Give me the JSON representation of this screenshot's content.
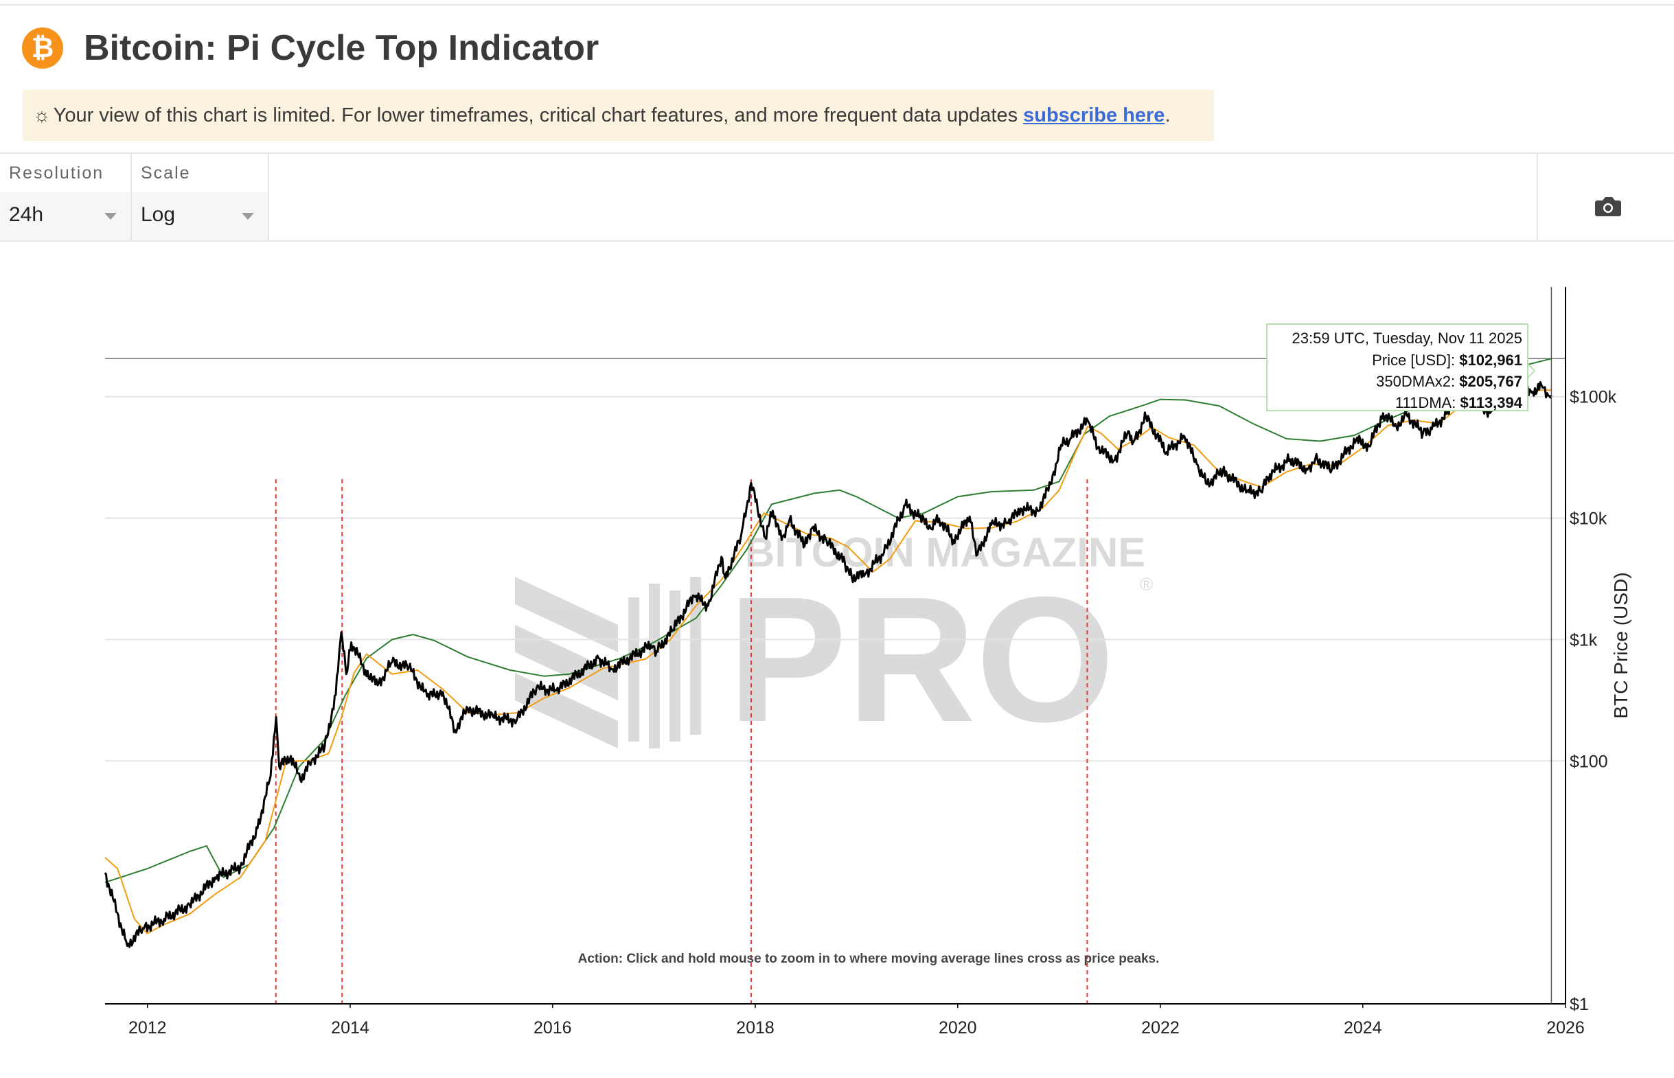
{
  "header": {
    "logo_glyph": "₿",
    "title": "Bitcoin: Pi Cycle Top Indicator"
  },
  "banner": {
    "icon": "sun-icon",
    "text": "Your view of this chart is limited. For lower timeframes, critical chart features, and more frequent data updates ",
    "link_text": "subscribe here",
    "suffix": "."
  },
  "controls": {
    "resolution": {
      "label": "Resolution",
      "value": "24h"
    },
    "scale": {
      "label": "Scale",
      "value": "Log"
    },
    "camera_icon": "camera-icon"
  },
  "watermark": {
    "line1": "BITCOIN MAGAZINE",
    "line2": "PRO",
    "mark": "®"
  },
  "chart_data": {
    "type": "line",
    "scale": "log",
    "ylabel": "BTC Price (USD)",
    "xlabel": "",
    "x_ticks": [
      "2012",
      "2014",
      "2016",
      "2018",
      "2020",
      "2022",
      "2024",
      "2026"
    ],
    "y_ticks": [
      {
        "value": 1,
        "label": "$1"
      },
      {
        "value": 100,
        "label": "$100"
      },
      {
        "value": 1000,
        "label": "$1k"
      },
      {
        "value": 10000,
        "label": "$10k"
      },
      {
        "value": 100000,
        "label": "$100k"
      }
    ],
    "xlim": [
      "2011-08-01",
      "2026-01-01"
    ],
    "ylim": [
      1,
      800000
    ],
    "colors": {
      "price": "#000000",
      "dma350x2": "#2e7d32",
      "dma111": "#f39c12",
      "cross": "#e53935"
    },
    "series": [
      {
        "name": "Price [USD]",
        "key": "price",
        "points": [
          [
            "2011-08-01",
            12
          ],
          [
            "2011-10-20",
            3
          ],
          [
            "2011-12-15",
            4.2
          ],
          [
            "2012-03-01",
            5
          ],
          [
            "2012-06-01",
            6.5
          ],
          [
            "2012-09-01",
            11
          ],
          [
            "2012-12-01",
            13.5
          ],
          [
            "2013-02-01",
            28
          ],
          [
            "2013-03-20",
            75
          ],
          [
            "2013-04-09",
            230
          ],
          [
            "2013-04-20",
            90
          ],
          [
            "2013-06-01",
            110
          ],
          [
            "2013-07-05",
            70
          ],
          [
            "2013-08-15",
            100
          ],
          [
            "2013-10-01",
            130
          ],
          [
            "2013-11-10",
            350
          ],
          [
            "2013-11-30",
            1150
          ],
          [
            "2013-12-18",
            520
          ],
          [
            "2014-01-05",
            950
          ],
          [
            "2014-02-25",
            560
          ],
          [
            "2014-04-10",
            420
          ],
          [
            "2014-06-01",
            650
          ],
          [
            "2014-08-01",
            590
          ],
          [
            "2014-10-05",
            340
          ],
          [
            "2014-12-01",
            370
          ],
          [
            "2015-01-14",
            180
          ],
          [
            "2015-03-01",
            270
          ],
          [
            "2015-06-01",
            230
          ],
          [
            "2015-08-24",
            215
          ],
          [
            "2015-11-04",
            400
          ],
          [
            "2016-01-15",
            380
          ],
          [
            "2016-06-15",
            700
          ],
          [
            "2016-08-01",
            570
          ],
          [
            "2016-12-20",
            900
          ],
          [
            "2017-01-10",
            800
          ],
          [
            "2017-03-10",
            1200
          ],
          [
            "2017-05-25",
            2300
          ],
          [
            "2017-07-15",
            1900
          ],
          [
            "2017-09-01",
            4800
          ],
          [
            "2017-09-15",
            3200
          ],
          [
            "2017-11-10",
            7000
          ],
          [
            "2017-12-17",
            19500
          ],
          [
            "2018-02-06",
            6900
          ],
          [
            "2018-03-05",
            11500
          ],
          [
            "2018-04-06",
            6600
          ],
          [
            "2018-05-05",
            9800
          ],
          [
            "2018-06-28",
            5900
          ],
          [
            "2018-07-25",
            8300
          ],
          [
            "2018-09-15",
            6500
          ],
          [
            "2018-11-20",
            4300
          ],
          [
            "2018-12-15",
            3250
          ],
          [
            "2019-02-01",
            3450
          ],
          [
            "2019-04-10",
            5200
          ],
          [
            "2019-06-26",
            12800
          ],
          [
            "2019-08-15",
            10200
          ],
          [
            "2019-09-25",
            8300
          ],
          [
            "2019-10-26",
            9900
          ],
          [
            "2019-12-17",
            6600
          ],
          [
            "2020-02-13",
            10300
          ],
          [
            "2020-03-12",
            5000
          ],
          [
            "2020-05-01",
            8800
          ],
          [
            "2020-07-01",
            9100
          ],
          [
            "2020-08-15",
            12000
          ],
          [
            "2020-10-15",
            11500
          ],
          [
            "2020-12-01",
            19000
          ],
          [
            "2021-01-08",
            40000
          ],
          [
            "2021-02-10",
            45000
          ],
          [
            "2021-04-14",
            63500
          ],
          [
            "2021-05-20",
            38000
          ],
          [
            "2021-07-20",
            30000
          ],
          [
            "2021-09-07",
            52000
          ],
          [
            "2021-09-25",
            42000
          ],
          [
            "2021-11-10",
            68000
          ],
          [
            "2022-01-23",
            35000
          ],
          [
            "2022-03-29",
            47000
          ],
          [
            "2022-05-12",
            28000
          ],
          [
            "2022-06-18",
            19000
          ],
          [
            "2022-08-14",
            24500
          ],
          [
            "2022-11-10",
            16500
          ],
          [
            "2022-12-30",
            16500
          ],
          [
            "2023-01-31",
            23000
          ],
          [
            "2023-04-14",
            30500
          ],
          [
            "2023-06-15",
            25000
          ],
          [
            "2023-07-14",
            31000
          ],
          [
            "2023-09-11",
            25000
          ],
          [
            "2023-12-08",
            44000
          ],
          [
            "2024-01-23",
            39000
          ],
          [
            "2024-03-14",
            73000
          ],
          [
            "2024-05-01",
            57000
          ],
          [
            "2024-06-07",
            71000
          ],
          [
            "2024-08-05",
            50000
          ],
          [
            "2024-09-06",
            54000
          ],
          [
            "2024-10-29",
            72000
          ],
          [
            "2024-12-17",
            106000
          ],
          [
            "2025-01-20",
            108000
          ],
          [
            "2025-03-10",
            78000
          ],
          [
            "2025-04-08",
            76000
          ],
          [
            "2025-05-22",
            111000
          ],
          [
            "2025-06-22",
            100000
          ],
          [
            "2025-07-14",
            122000
          ],
          [
            "2025-08-14",
            123000
          ],
          [
            "2025-09-01",
            108000
          ],
          [
            "2025-10-06",
            125000
          ],
          [
            "2025-11-04",
            101000
          ],
          [
            "2025-11-11",
            102961
          ]
        ]
      },
      {
        "name": "350DMAx2",
        "key": "dma350x2",
        "points": [
          [
            "2011-08-01",
            10
          ],
          [
            "2012-01-01",
            13
          ],
          [
            "2012-06-01",
            18
          ],
          [
            "2012-08-01",
            20
          ],
          [
            "2012-10-01",
            11
          ],
          [
            "2013-01-01",
            14
          ],
          [
            "2013-04-01",
            28
          ],
          [
            "2013-07-01",
            90
          ],
          [
            "2013-10-01",
            150
          ],
          [
            "2013-12-15",
            350
          ],
          [
            "2014-03-01",
            700
          ],
          [
            "2014-06-01",
            1000
          ],
          [
            "2014-08-15",
            1100
          ],
          [
            "2014-11-01",
            980
          ],
          [
            "2015-03-01",
            720
          ],
          [
            "2015-08-01",
            560
          ],
          [
            "2015-12-01",
            500
          ],
          [
            "2016-03-01",
            520
          ],
          [
            "2016-09-01",
            700
          ],
          [
            "2017-01-01",
            950
          ],
          [
            "2017-06-01",
            1500
          ],
          [
            "2017-09-01",
            2800
          ],
          [
            "2017-12-01",
            5500
          ],
          [
            "2018-03-01",
            13000
          ],
          [
            "2018-08-01",
            16000
          ],
          [
            "2018-11-01",
            17000
          ],
          [
            "2019-01-01",
            15000
          ],
          [
            "2019-06-01",
            10000
          ],
          [
            "2019-09-01",
            11000
          ],
          [
            "2020-01-01",
            15000
          ],
          [
            "2020-05-01",
            16500
          ],
          [
            "2020-10-01",
            17000
          ],
          [
            "2021-01-01",
            20000
          ],
          [
            "2021-04-01",
            49000
          ],
          [
            "2021-07-01",
            69000
          ],
          [
            "2021-11-01",
            85000
          ],
          [
            "2022-01-01",
            95000
          ],
          [
            "2022-04-01",
            94000
          ],
          [
            "2022-08-01",
            84000
          ],
          [
            "2022-12-01",
            60000
          ],
          [
            "2023-04-01",
            45000
          ],
          [
            "2023-08-01",
            43000
          ],
          [
            "2023-12-01",
            48000
          ],
          [
            "2024-04-01",
            65000
          ],
          [
            "2024-08-01",
            85000
          ],
          [
            "2024-12-01",
            105000
          ],
          [
            "2025-04-01",
            150000
          ],
          [
            "2025-08-01",
            180000
          ],
          [
            "2025-11-11",
            205767
          ]
        ]
      },
      {
        "name": "111DMA",
        "key": "dma111",
        "points": [
          [
            "2011-08-01",
            16
          ],
          [
            "2011-09-15",
            13
          ],
          [
            "2011-11-15",
            5
          ],
          [
            "2011-12-31",
            3.8
          ],
          [
            "2012-03-01",
            4.5
          ],
          [
            "2012-06-01",
            5.5
          ],
          [
            "2012-09-01",
            8
          ],
          [
            "2012-12-01",
            11
          ],
          [
            "2013-03-01",
            22
          ],
          [
            "2013-05-15",
            100
          ],
          [
            "2013-08-01",
            100
          ],
          [
            "2013-10-15",
            115
          ],
          [
            "2013-12-01",
            230
          ],
          [
            "2014-01-15",
            530
          ],
          [
            "2014-03-01",
            760
          ],
          [
            "2014-06-01",
            520
          ],
          [
            "2014-09-01",
            560
          ],
          [
            "2014-12-01",
            390
          ],
          [
            "2015-03-01",
            250
          ],
          [
            "2015-06-01",
            240
          ],
          [
            "2015-09-01",
            250
          ],
          [
            "2015-12-01",
            330
          ],
          [
            "2016-03-01",
            400
          ],
          [
            "2016-07-01",
            580
          ],
          [
            "2016-12-01",
            690
          ],
          [
            "2017-03-01",
            1000
          ],
          [
            "2017-06-01",
            1900
          ],
          [
            "2017-09-01",
            3100
          ],
          [
            "2017-12-01",
            6500
          ],
          [
            "2018-02-01",
            11000
          ],
          [
            "2018-04-01",
            9500
          ],
          [
            "2018-07-01",
            7500
          ],
          [
            "2018-10-01",
            6800
          ],
          [
            "2018-12-01",
            5800
          ],
          [
            "2019-03-01",
            3600
          ],
          [
            "2019-05-01",
            4600
          ],
          [
            "2019-08-01",
            9500
          ],
          [
            "2019-11-01",
            9200
          ],
          [
            "2020-02-01",
            8200
          ],
          [
            "2020-05-01",
            8300
          ],
          [
            "2020-08-01",
            9400
          ],
          [
            "2020-11-01",
            12000
          ],
          [
            "2021-01-01",
            17000
          ],
          [
            "2021-03-01",
            35000
          ],
          [
            "2021-04-14",
            57000
          ],
          [
            "2021-06-01",
            50000
          ],
          [
            "2021-08-01",
            37000
          ],
          [
            "2021-10-01",
            44000
          ],
          [
            "2021-12-01",
            56000
          ],
          [
            "2022-02-01",
            46000
          ],
          [
            "2022-05-01",
            40000
          ],
          [
            "2022-08-01",
            24000
          ],
          [
            "2022-11-01",
            20000
          ],
          [
            "2023-01-01",
            18000
          ],
          [
            "2023-04-01",
            24000
          ],
          [
            "2023-07-01",
            28000
          ],
          [
            "2023-10-01",
            27000
          ],
          [
            "2024-01-01",
            38000
          ],
          [
            "2024-04-01",
            58000
          ],
          [
            "2024-07-01",
            64000
          ],
          [
            "2024-10-01",
            60000
          ],
          [
            "2025-01-01",
            88000
          ],
          [
            "2025-04-01",
            91000
          ],
          [
            "2025-07-01",
            105000
          ],
          [
            "2025-10-01",
            113000
          ],
          [
            "2025-11-11",
            113394
          ]
        ]
      }
    ],
    "cross_markers": [
      "2013-04-08",
      "2013-12-03",
      "2017-12-17",
      "2021-04-12"
    ],
    "reference_line": 205767,
    "cursor_date": "2025-11-11",
    "tooltip": {
      "title": "23:59 UTC, Tuesday, Nov 11 2025",
      "rows": [
        {
          "label": "Price [USD]: ",
          "value": "$102,961"
        },
        {
          "label": "350DMAx2: ",
          "value": "$205,767"
        },
        {
          "label": "111DMA: ",
          "value": "$113,394"
        }
      ]
    },
    "annotation": "Action: Click and hold mouse to zoom in to where moving average lines cross as price peaks.",
    "grid": true
  }
}
